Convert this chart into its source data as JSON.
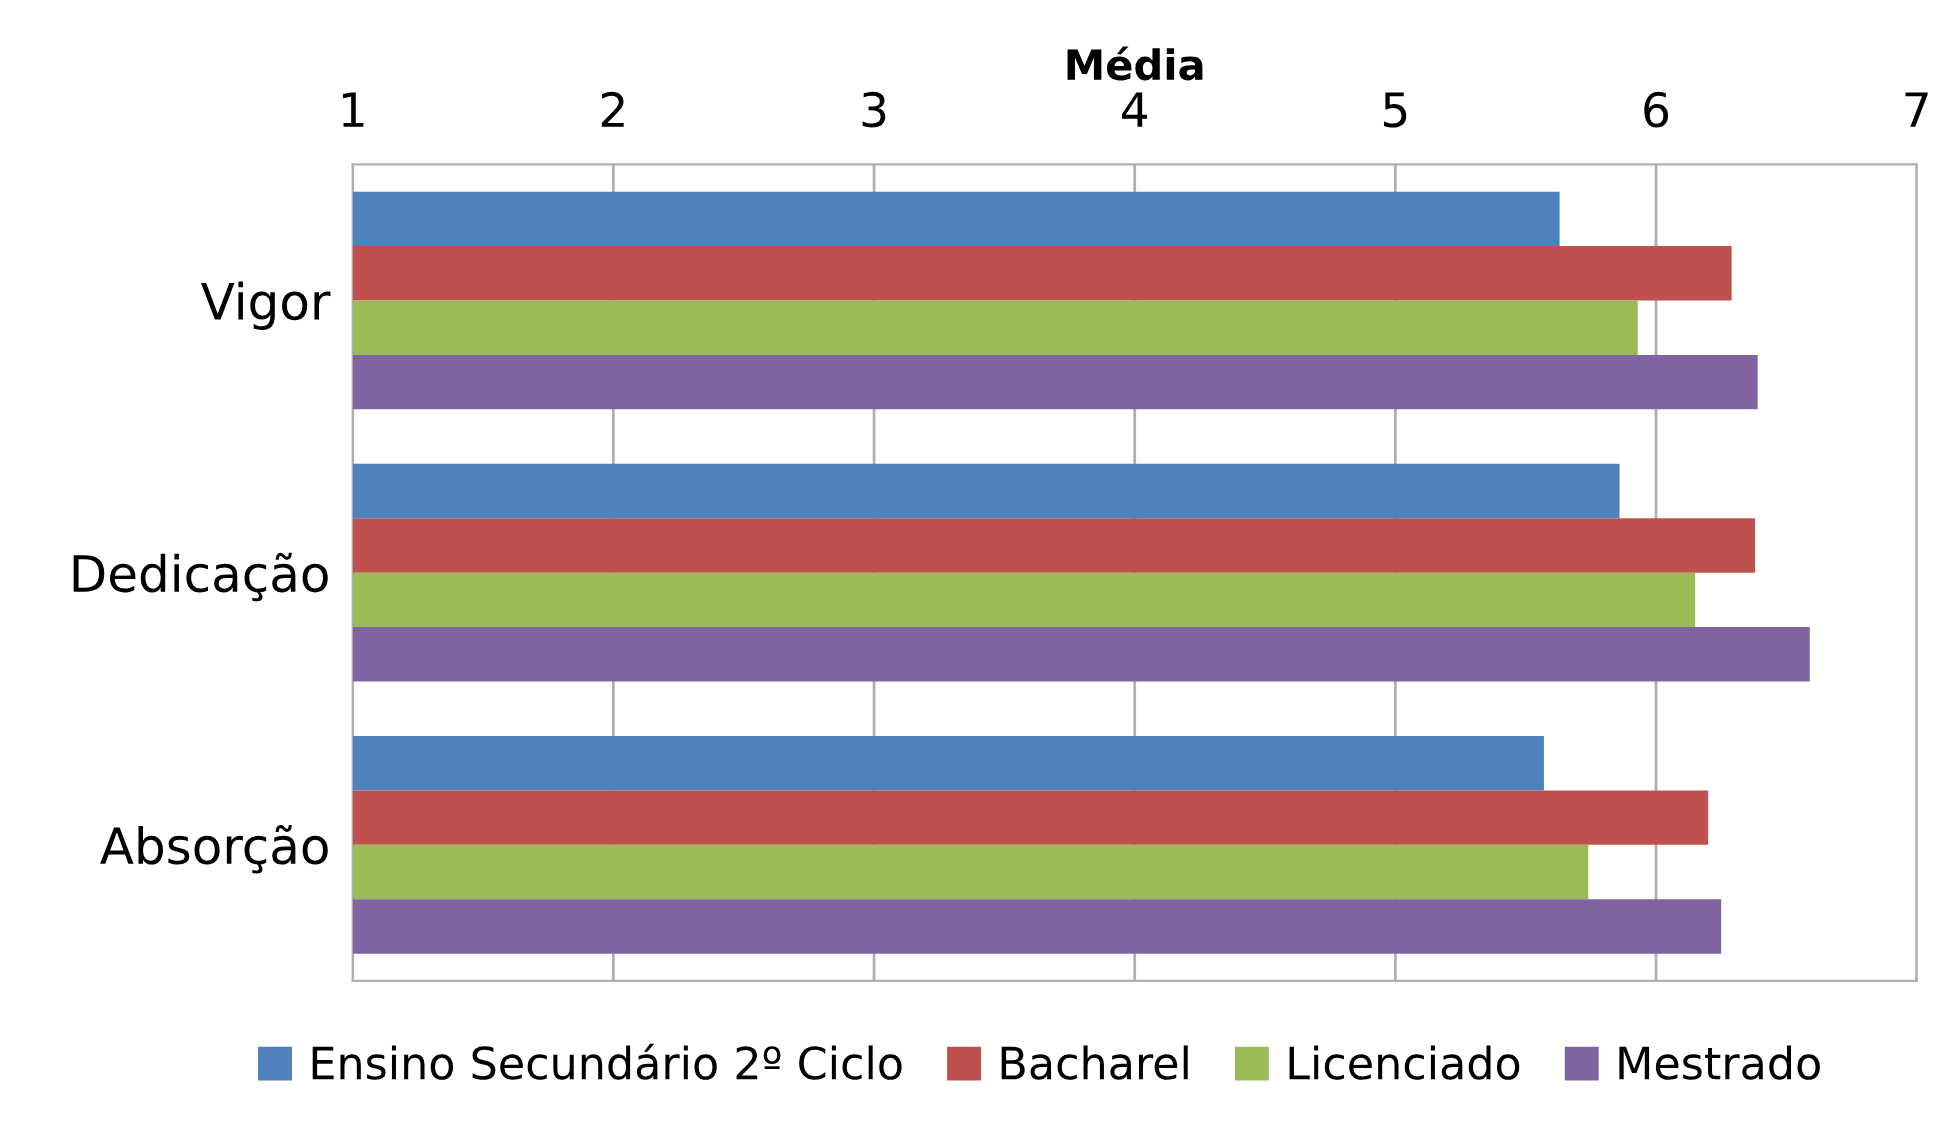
{
  "chart_data": {
    "type": "bar",
    "orientation": "horizontal",
    "xlabel": "Média",
    "categories": [
      "Vigor",
      "Dedicação",
      "Absorção"
    ],
    "series": [
      {
        "name": "Ensino Secundário 2º Ciclo",
        "color": "#4f81bd",
        "values": [
          5.63,
          5.86,
          5.57
        ]
      },
      {
        "name": "Bacharel",
        "color": "#c0504d",
        "values": [
          6.29,
          6.38,
          6.2
        ]
      },
      {
        "name": "Licenciado",
        "color": "#9bbb59",
        "values": [
          5.93,
          6.15,
          5.74
        ]
      },
      {
        "name": "Mestrado",
        "color": "#8064a2",
        "values": [
          6.39,
          6.59,
          6.25
        ]
      }
    ],
    "xlim": [
      1,
      7
    ],
    "xticks": [
      1,
      2,
      3,
      4,
      5,
      6,
      7
    ],
    "grid": "x",
    "legend": "bottom"
  }
}
